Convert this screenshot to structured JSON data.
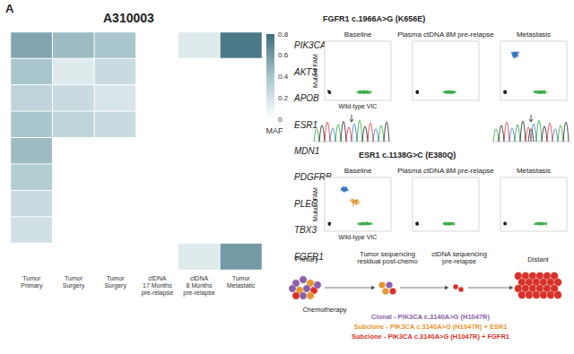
{
  "panel_label": "A",
  "chart_data": {
    "type": "heatmap",
    "title": "A310003",
    "rows": [
      "PIK3CA",
      "AKT3",
      "APOB",
      "ESR1",
      "MDN1",
      "PDGFRB",
      "PLEC",
      "TBX3",
      "FGFR1"
    ],
    "columns": [
      "Tumor\nPrimary",
      "Tumor\nSurgery",
      "Tumor\nSurgery",
      "ctDNA\n17 Months\npre-relapse",
      "ctDNA\n8 Months\npre-relapse",
      "Tumor\nMetastatic"
    ],
    "cells": [
      [
        0.55,
        0.45,
        0.4,
        0,
        0.15,
        0.75
      ],
      [
        0.4,
        0.15,
        0.25,
        0,
        0,
        0
      ],
      [
        0.3,
        0.25,
        0.18,
        0,
        0,
        0
      ],
      [
        0.4,
        0.3,
        0.25,
        0,
        0,
        0
      ],
      [
        0.45,
        0,
        0,
        0,
        0,
        0
      ],
      [
        0.35,
        0,
        0,
        0,
        0,
        0
      ],
      [
        0.25,
        0,
        0,
        0,
        0,
        0
      ],
      [
        0.22,
        0,
        0,
        0,
        0,
        0
      ],
      [
        0,
        0,
        0,
        0,
        0.15,
        0.6
      ]
    ],
    "colorbar": {
      "label": "MAF",
      "range": [
        0,
        0.8
      ],
      "ticks": [
        0,
        0.2,
        0.4,
        0.6,
        0.8
      ],
      "colors": [
        "#ffffff",
        "#a9c6cd",
        "#3f6e7d"
      ]
    }
  },
  "ddpcr": [
    {
      "title": "FGFR1 c.1966A>G (K656E)",
      "panels": [
        "Baseline",
        "Plasma ctDNA 8M pre-relapse",
        "Metastasis"
      ],
      "y_label": "Mutant FAM",
      "x_label": "Wild-type VIC"
    },
    {
      "title": "ESR1 c.1138G>C (E380Q)",
      "panels": [
        "Baseline",
        "Plasma ctDNA 8M pre-relapse",
        "Metastasis"
      ],
      "y_label": "Mutant FAM",
      "x_label": "Wild-type VIC"
    }
  ],
  "schematic": {
    "stages": [
      "Primary",
      "Tumor sequencing\nresidual post-chemo",
      "ctDNA sequencing\npre-relapse",
      "Distant"
    ],
    "treatment": "Chemotherapy",
    "legend": [
      {
        "text": "Clonal - PIK3CA c.3140A>G (H1047R)",
        "color": "#8a5fa8"
      },
      {
        "text": "Subclone - PIK3CA c.3140A>G (H1047R) + ESR1",
        "color": "#e8942e"
      },
      {
        "text": "Subclone - PIK3CA c.3140A>G (H1047R) + FGFR1",
        "color": "#d6322a"
      }
    ]
  }
}
